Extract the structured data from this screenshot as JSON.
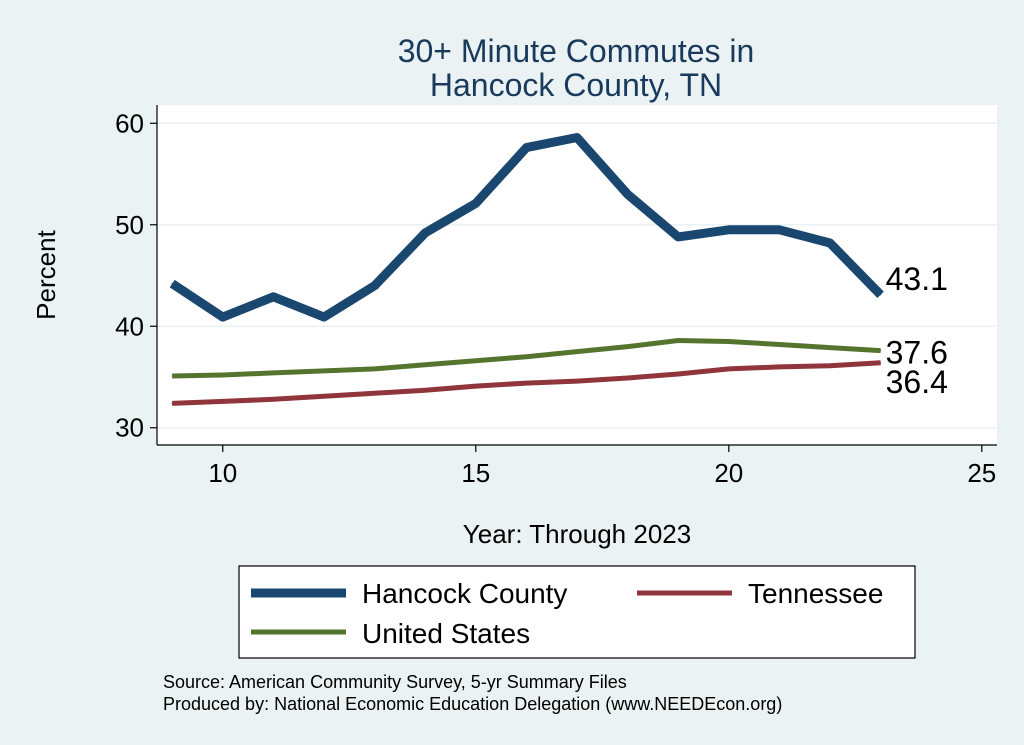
{
  "chart_data": {
    "type": "line",
    "title": [
      "30+ Minute Commutes in",
      "Hancock County, TN"
    ],
    "xlabel": "Year: Through 2023",
    "ylabel": "Percent",
    "xlim": [
      8.7,
      25.3
    ],
    "ylim": [
      28.3,
      61.8
    ],
    "xticks": [
      10,
      15,
      20,
      25
    ],
    "yticks": [
      30,
      40,
      50,
      60
    ],
    "series": [
      {
        "name": "Hancock County",
        "color": "#1a476f",
        "x": [
          9,
          10,
          11,
          12,
          13,
          14,
          15,
          16,
          17,
          18,
          19,
          20,
          21,
          22,
          23
        ],
        "values": [
          44.2,
          40.9,
          42.9,
          40.9,
          44.0,
          49.2,
          52.1,
          57.6,
          58.6,
          53.0,
          48.8,
          49.5,
          49.5,
          48.2,
          43.1
        ],
        "end_label": "43.1"
      },
      {
        "name": "Tennessee",
        "color": "#90353b",
        "x": [
          9,
          10,
          11,
          12,
          13,
          14,
          15,
          16,
          17,
          18,
          19,
          20,
          21,
          22,
          23
        ],
        "values": [
          32.4,
          32.6,
          32.8,
          33.1,
          33.4,
          33.7,
          34.1,
          34.4,
          34.6,
          34.9,
          35.3,
          35.8,
          36.0,
          36.1,
          36.4
        ],
        "end_label": "36.4"
      },
      {
        "name": "United States",
        "color": "#55752f",
        "x": [
          9,
          10,
          11,
          12,
          13,
          14,
          15,
          16,
          17,
          18,
          19,
          20,
          21,
          22,
          23
        ],
        "values": [
          35.1,
          35.2,
          35.4,
          35.6,
          35.8,
          36.2,
          36.6,
          37.0,
          37.5,
          38.0,
          38.6,
          38.5,
          38.2,
          37.9,
          37.6
        ],
        "end_label": "37.6"
      }
    ],
    "legend": {
      "placement": "bottom",
      "order": [
        "Hancock County",
        "Tennessee",
        "United States"
      ]
    },
    "source_lines": [
      "Source: American Community Survey, 5-yr Summary Files",
      "Produced by: National Economic Education Delegation (www.NEEDEcon.org)"
    ]
  }
}
